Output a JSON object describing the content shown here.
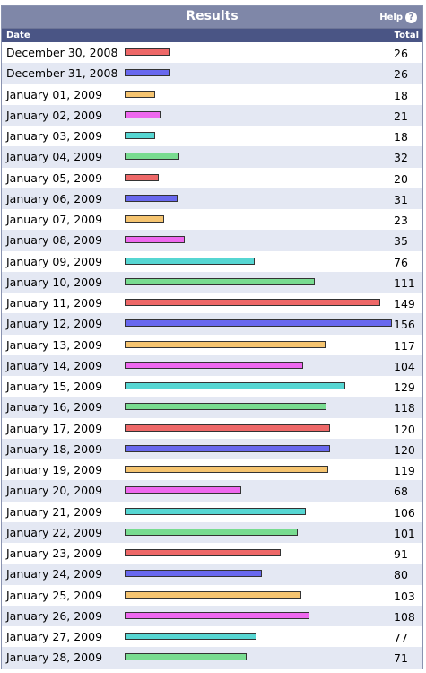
{
  "header": {
    "title": "Results",
    "help_label": "Help",
    "help_icon": "question-circle-icon"
  },
  "columns": {
    "date": "Date",
    "total": "Total"
  },
  "colors": [
    "#ee6868",
    "#6868ee",
    "#f5c470",
    "#ee68ee",
    "#56d6d2",
    "#78dc90"
  ],
  "chart_data": {
    "type": "bar",
    "orientation": "horizontal",
    "title": "Results",
    "xlabel": "Total",
    "ylabel": "Date",
    "categories": [
      "December 30, 2008",
      "December 31, 2008",
      "January 01, 2009",
      "January 02, 2009",
      "January 03, 2009",
      "January 04, 2009",
      "January 05, 2009",
      "January 06, 2009",
      "January 07, 2009",
      "January 08, 2009",
      "January 09, 2009",
      "January 10, 2009",
      "January 11, 2009",
      "January 12, 2009",
      "January 13, 2009",
      "January 14, 2009",
      "January 15, 2009",
      "January 16, 2009",
      "January 17, 2009",
      "January 18, 2009",
      "January 19, 2009",
      "January 20, 2009",
      "January 21, 2009",
      "January 22, 2009",
      "January 23, 2009",
      "January 24, 2009",
      "January 25, 2009",
      "January 26, 2009",
      "January 27, 2009",
      "January 28, 2009"
    ],
    "values": [
      26,
      26,
      18,
      21,
      18,
      32,
      20,
      31,
      23,
      35,
      76,
      111,
      149,
      156,
      117,
      104,
      129,
      118,
      120,
      120,
      119,
      68,
      106,
      101,
      91,
      80,
      103,
      108,
      77,
      71
    ],
    "xlim": [
      0,
      156
    ],
    "grid": false,
    "legend": "none"
  }
}
